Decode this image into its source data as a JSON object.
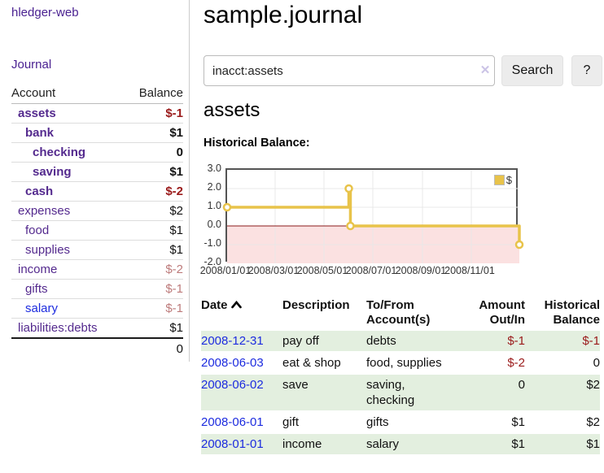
{
  "sidebar": {
    "brand": "hledger-web",
    "journal_link": "Journal",
    "accounts_table": {
      "headers": {
        "account": "Account",
        "balance": "Balance"
      },
      "rows": [
        {
          "account": "assets",
          "indent": 1,
          "bold": true,
          "balance": "$-1",
          "balance_style": "neg-strong"
        },
        {
          "account": "bank",
          "indent": 2,
          "bold": true,
          "balance": "$1",
          "balance_style": "pos"
        },
        {
          "account": "checking",
          "indent": 3,
          "bold": true,
          "balance": "0",
          "balance_style": "pos"
        },
        {
          "account": "saving",
          "indent": 3,
          "bold": true,
          "balance": "$1",
          "balance_style": "pos"
        },
        {
          "account": "cash",
          "indent": 2,
          "bold": true,
          "balance": "$-2",
          "balance_style": "neg-strong"
        },
        {
          "account": "expenses",
          "indent": 1,
          "bold": false,
          "balance": "$2",
          "balance_style": "pos"
        },
        {
          "account": "food",
          "indent": 2,
          "bold": false,
          "balance": "$1",
          "balance_style": "pos"
        },
        {
          "account": "supplies",
          "indent": 2,
          "bold": false,
          "balance": "$1",
          "balance_style": "pos"
        },
        {
          "account": "income",
          "indent": 1,
          "bold": false,
          "balance": "$-2",
          "balance_style": "neg-soft"
        },
        {
          "account": "gifts",
          "indent": 2,
          "bold": false,
          "balance": "$-1",
          "balance_style": "neg-soft"
        },
        {
          "account": "salary",
          "indent": 2,
          "bold": false,
          "balance": "$-1",
          "balance_style": "neg-soft",
          "link_style": "blue"
        },
        {
          "account": "liabilities:debts",
          "indent": 1,
          "bold": false,
          "balance": "$1",
          "balance_style": "pos"
        }
      ],
      "total": "0"
    }
  },
  "header": {
    "title": "sample.journal"
  },
  "search": {
    "query": "inacct:assets",
    "clear_icon": "✕",
    "button_label": "Search",
    "help_label": "?"
  },
  "account_page": {
    "heading": "assets",
    "chart_title": "Historical Balance:"
  },
  "chart_data": {
    "type": "line",
    "step": true,
    "title": "Historical Balance:",
    "series": [
      {
        "name": "$",
        "color": "#e8c34a",
        "points": [
          [
            "2008-01-01",
            1
          ],
          [
            "2008-06-01",
            2
          ],
          [
            "2008-06-03",
            0
          ],
          [
            "2008-12-31",
            -1
          ]
        ]
      }
    ],
    "xlim": [
      "2008-01-01",
      "2008-12-31"
    ],
    "ylim": [
      -2,
      3
    ],
    "y_ticks": [
      {
        "v": 3,
        "label": "3.0"
      },
      {
        "v": 2,
        "label": "2.0"
      },
      {
        "v": 1,
        "label": "1.0"
      },
      {
        "v": 0,
        "label": "0.0"
      },
      {
        "v": -1,
        "label": "-1.0"
      },
      {
        "v": -2,
        "label": "-2.0"
      }
    ],
    "x_ticks": [
      {
        "d": "2008-01-01",
        "label": "2008/01/01"
      },
      {
        "d": "2008-03-01",
        "label": "2008/03/01"
      },
      {
        "d": "2008-05-01",
        "label": "2008/05/01"
      },
      {
        "d": "2008-07-01",
        "label": "2008/07/01"
      },
      {
        "d": "2008-09-01",
        "label": "2008/09/01"
      },
      {
        "d": "2008-11-01",
        "label": "2008/11/01"
      }
    ],
    "grid": true,
    "legend": {
      "label": "$",
      "position": "top-right"
    },
    "negative_region_color": "#fbe1e1",
    "zero_line_color": "#8b1a1a",
    "grid_color": "#e8e8e8",
    "border_color": "#545454"
  },
  "register": {
    "headers": {
      "date": "Date",
      "description": "Description",
      "tofrom": "To/From\nAccount(s)",
      "amount": "Amount\nOut/In",
      "balance": "Historical\nBalance"
    },
    "rows": [
      {
        "date": "2008-12-31",
        "description": "pay off",
        "tofrom": "debts",
        "amount": "$-1",
        "amount_neg": true,
        "balance": "$-1",
        "balance_neg": true
      },
      {
        "date": "2008-06-03",
        "description": "eat & shop",
        "tofrom": "food, supplies",
        "amount": "$-2",
        "amount_neg": true,
        "balance": "0",
        "balance_neg": false
      },
      {
        "date": "2008-06-02",
        "description": "save",
        "tofrom": "saving,\nchecking",
        "amount": "0",
        "amount_neg": false,
        "balance": "$2",
        "balance_neg": false
      },
      {
        "date": "2008-06-01",
        "description": "gift",
        "tofrom": "gifts",
        "amount": "$1",
        "amount_neg": false,
        "balance": "$2",
        "balance_neg": false
      },
      {
        "date": "2008-01-01",
        "description": "income",
        "tofrom": "salary",
        "amount": "$1",
        "amount_neg": false,
        "balance": "$1",
        "balance_neg": false
      }
    ]
  },
  "colors": {
    "link_purple": "#542a8e",
    "link_blue": "#1d2cdf",
    "negative_strong": "#9a1a1a",
    "negative_soft": "#bd7b7b",
    "row_green": "#e3efdf",
    "series_gold": "#e8c34a",
    "button_gray": "#ececec"
  }
}
